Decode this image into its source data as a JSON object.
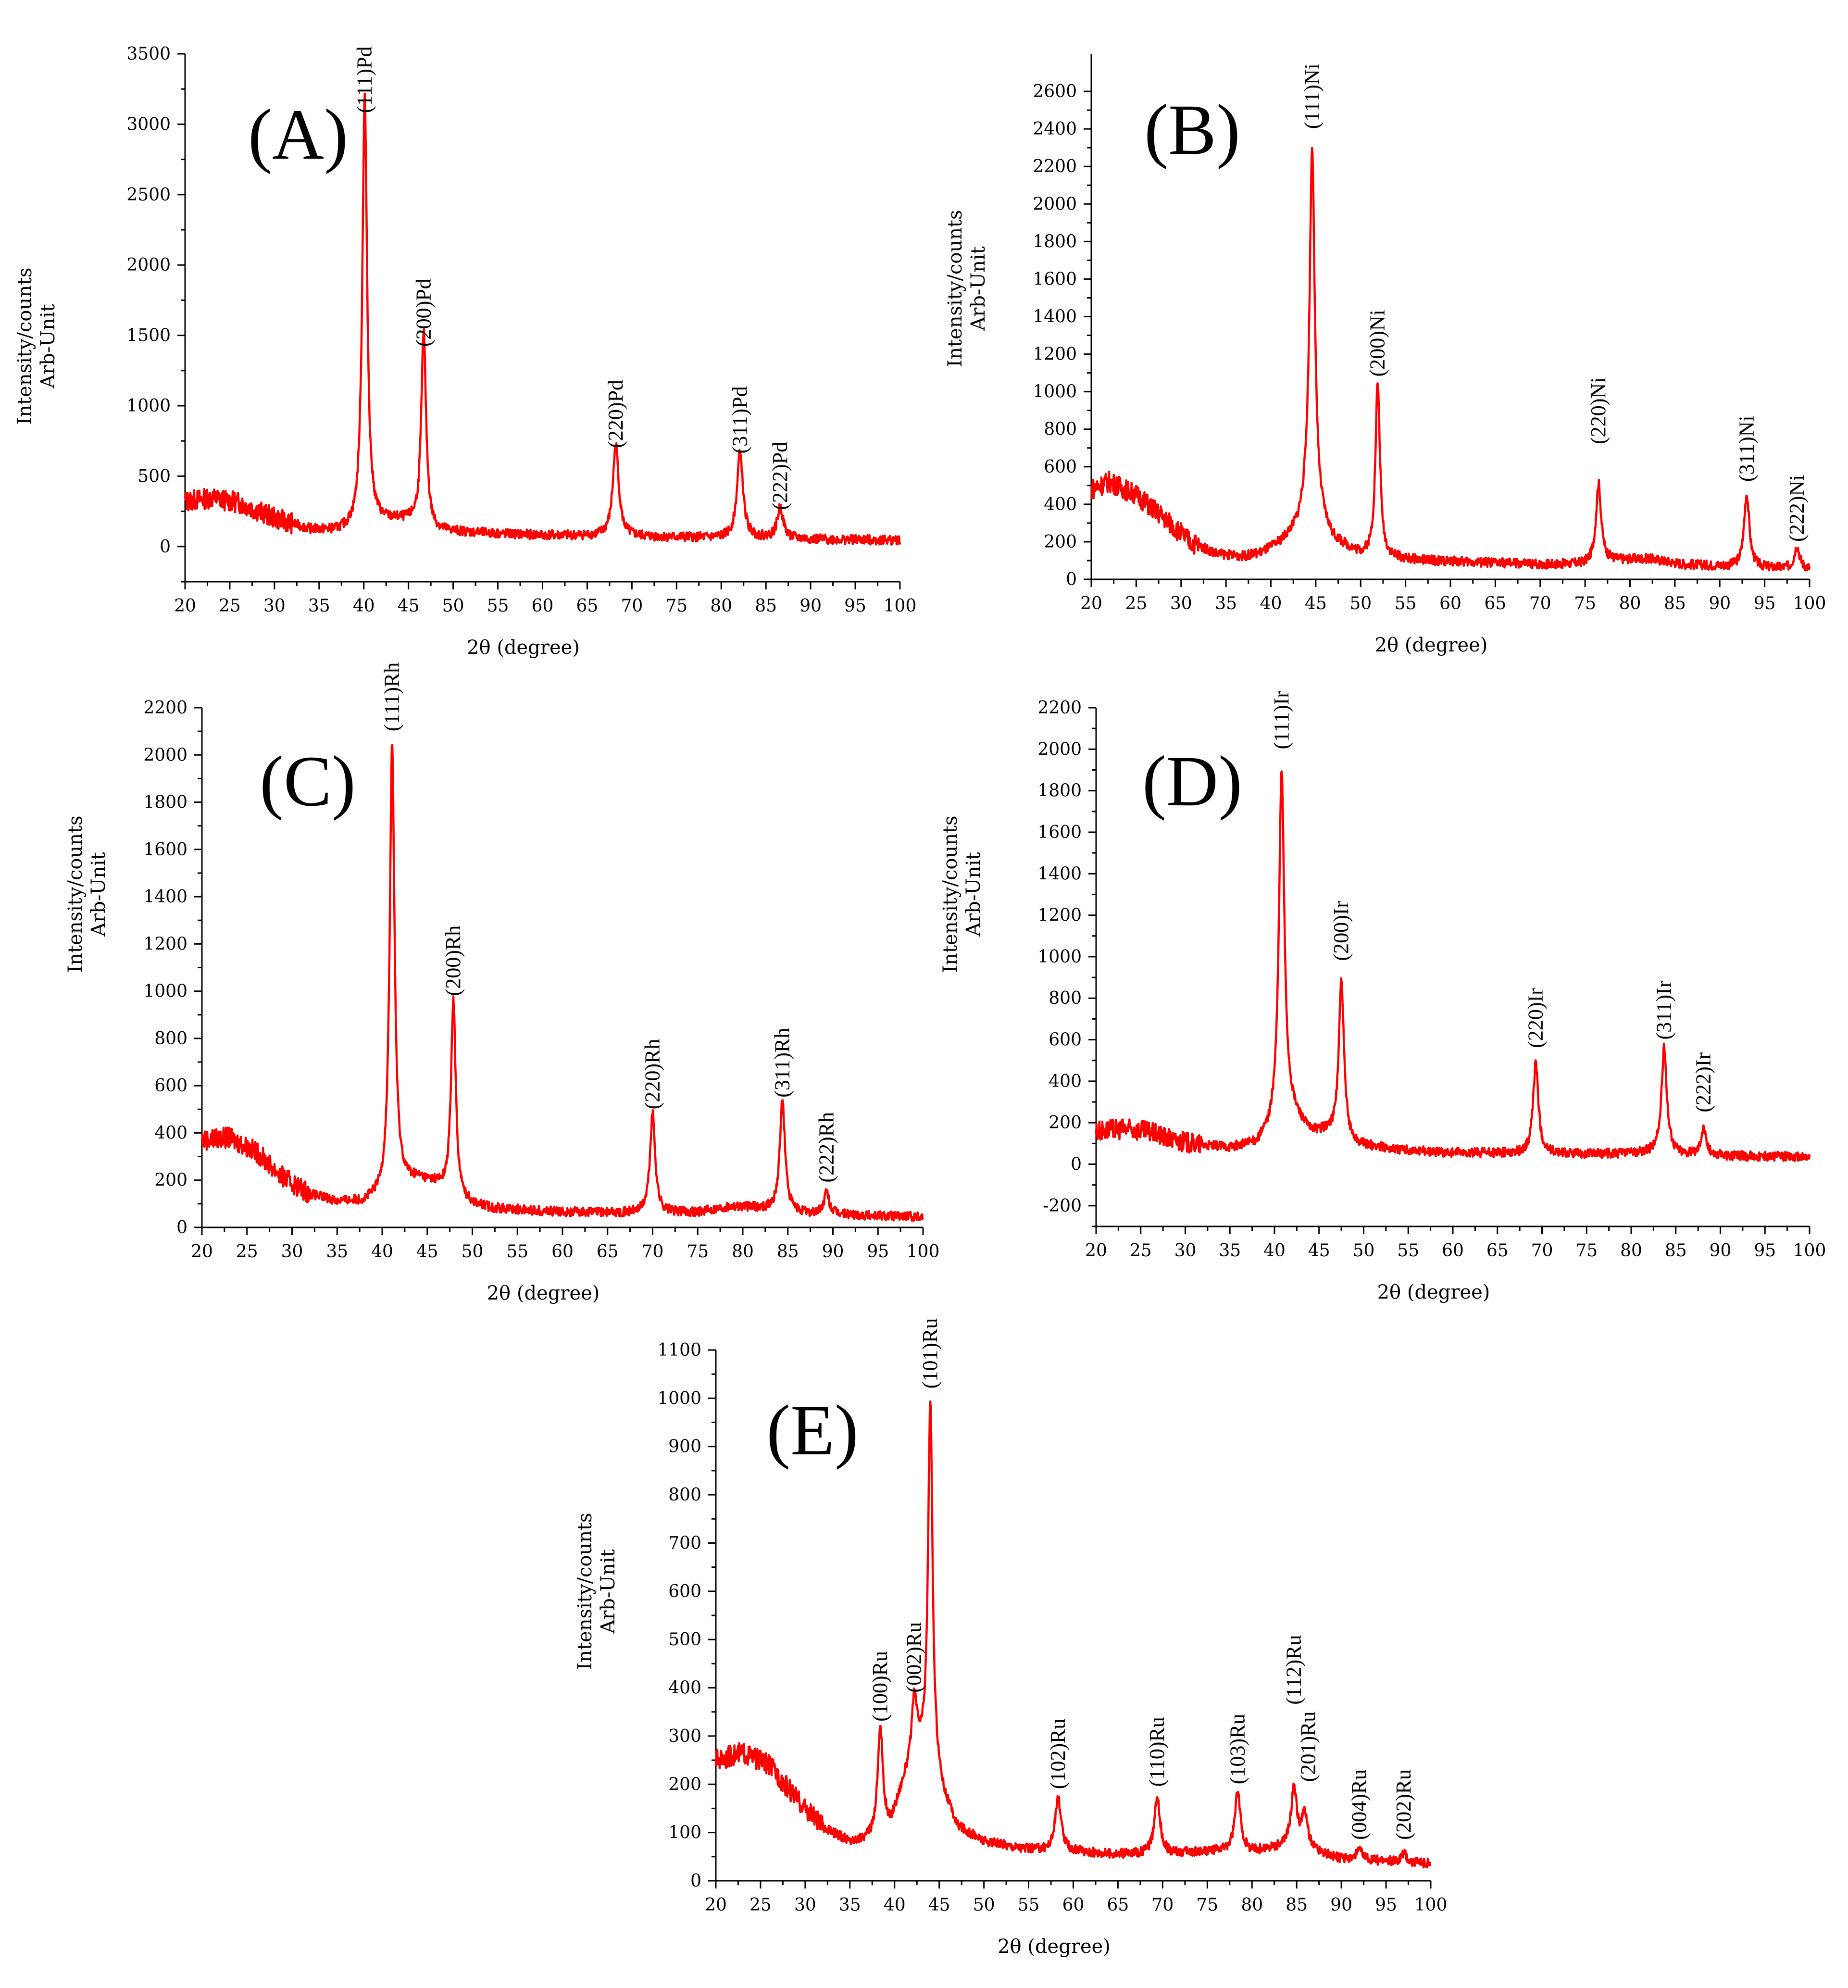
{
  "chart_data": [
    {
      "id": "A",
      "type": "line",
      "panel_label": "(A)",
      "xlabel": "2θ (degree)",
      "ylabel": [
        "Intensity/counts",
        "Arb-Unit"
      ],
      "xlim": [
        20,
        100
      ],
      "ylim": [
        -250,
        3500
      ],
      "xticks": [
        20,
        25,
        30,
        35,
        40,
        45,
        50,
        55,
        60,
        65,
        70,
        75,
        80,
        85,
        90,
        95,
        100
      ],
      "yticks": [
        0,
        500,
        1000,
        1500,
        2000,
        2500,
        3000,
        3500
      ],
      "series": [
        {
          "name": "Pd",
          "color": "#ff0000",
          "baseline": [
            [
              20,
              320
            ],
            [
              23,
              345
            ],
            [
              26,
              310
            ],
            [
              30,
              200
            ],
            [
              34,
              120
            ],
            [
              37,
              105
            ],
            [
              39,
              120
            ],
            [
              40.5,
              160
            ],
            [
              42,
              170
            ],
            [
              44,
              180
            ],
            [
              45.5,
              170
            ],
            [
              48,
              110
            ],
            [
              55,
              90
            ],
            [
              60,
              80
            ],
            [
              70,
              70
            ],
            [
              80,
              60
            ],
            [
              85,
              60
            ],
            [
              90,
              50
            ],
            [
              100,
              45
            ]
          ],
          "peaks": [
            [
              40.1,
              3050,
              0.32
            ],
            [
              46.7,
              1380,
              0.32
            ],
            [
              68.2,
              650,
              0.4
            ],
            [
              82.1,
              610,
              0.4
            ],
            [
              86.6,
              220,
              0.4
            ]
          ]
        }
      ],
      "annotations": [
        {
          "text": "(111)Pd",
          "x": 40.1,
          "y": 3080
        },
        {
          "text": "(200)Pd",
          "x": 46.7,
          "y": 1420
        },
        {
          "text": "(220)Pd",
          "x": 68.2,
          "y": 700
        },
        {
          "text": "(311)Pd",
          "x": 82.1,
          "y": 660
        },
        {
          "text": "(222)Pd",
          "x": 86.6,
          "y": 260
        }
      ]
    },
    {
      "id": "B",
      "type": "line",
      "panel_label": "(B)",
      "xlabel": "2θ (degree)",
      "ylabel": [
        "Intensity/counts",
        "Arb-Unit"
      ],
      "xlim": [
        20,
        100
      ],
      "ylim": [
        0,
        2800
      ],
      "xticks": [
        20,
        25,
        30,
        35,
        40,
        45,
        50,
        55,
        60,
        65,
        70,
        75,
        80,
        85,
        90,
        95,
        100
      ],
      "yticks": [
        0,
        200,
        400,
        600,
        800,
        1000,
        1200,
        1400,
        1600,
        1800,
        2000,
        2200,
        2400,
        2600
      ],
      "series": [
        {
          "name": "Ni",
          "color": "#ff0000",
          "baseline": [
            [
              20,
              480
            ],
            [
              22,
              520
            ],
            [
              25,
              450
            ],
            [
              28,
              330
            ],
            [
              31,
              200
            ],
            [
              34,
              135
            ],
            [
              37,
              120
            ],
            [
              39,
              140
            ],
            [
              41,
              190
            ],
            [
              43,
              270
            ],
            [
              44,
              360
            ],
            [
              45.5,
              300
            ],
            [
              47,
              200
            ],
            [
              50,
              130
            ],
            [
              55,
              105
            ],
            [
              60,
              95
            ],
            [
              70,
              80
            ],
            [
              75,
              80
            ],
            [
              78,
              100
            ],
            [
              82,
              110
            ],
            [
              86,
              80
            ],
            [
              90,
              70
            ],
            [
              95,
              60
            ],
            [
              100,
              55
            ]
          ],
          "peaks": [
            [
              44.6,
              1970,
              0.35
            ],
            [
              51.9,
              930,
              0.3
            ],
            [
              76.5,
              420,
              0.35
            ],
            [
              93.0,
              390,
              0.35
            ],
            [
              98.6,
              120,
              0.35
            ]
          ]
        }
      ],
      "annotations": [
        {
          "text": "(111)Ni",
          "x": 44.6,
          "y": 2400
        },
        {
          "text": "(200)Ni",
          "x": 51.9,
          "y": 1080
        },
        {
          "text": "(220)Ni",
          "x": 76.5,
          "y": 720
        },
        {
          "text": "(311)Ni",
          "x": 93.0,
          "y": 520
        },
        {
          "text": "(222)Ni",
          "x": 98.6,
          "y": 200
        }
      ]
    },
    {
      "id": "C",
      "type": "line",
      "panel_label": "(C)",
      "xlabel": "2θ (degree)",
      "ylabel": [
        "Intensity/counts",
        "Arb-Unit"
      ],
      "xlim": [
        20,
        100
      ],
      "ylim": [
        0,
        2200
      ],
      "xticks": [
        20,
        25,
        30,
        35,
        40,
        45,
        50,
        55,
        60,
        65,
        70,
        75,
        80,
        85,
        90,
        95,
        100
      ],
      "yticks": [
        0,
        200,
        400,
        600,
        800,
        1000,
        1200,
        1400,
        1600,
        1800,
        2000,
        2200
      ],
      "series": [
        {
          "name": "Rh",
          "color": "#ff0000",
          "baseline": [
            [
              20,
              370
            ],
            [
              23,
              380
            ],
            [
              26,
              320
            ],
            [
              29,
              210
            ],
            [
              32,
              140
            ],
            [
              35,
              110
            ],
            [
              38,
              105
            ],
            [
              40,
              130
            ],
            [
              42,
              180
            ],
            [
              44,
              200
            ],
            [
              46,
              180
            ],
            [
              48.5,
              110
            ],
            [
              52,
              80
            ],
            [
              60,
              65
            ],
            [
              70,
              60
            ],
            [
              75,
              65
            ],
            [
              79,
              90
            ],
            [
              82,
              80
            ],
            [
              86,
              60
            ],
            [
              90,
              55
            ],
            [
              100,
              45
            ]
          ],
          "peaks": [
            [
              41.1,
              1890,
              0.32
            ],
            [
              47.9,
              830,
              0.32
            ],
            [
              70.0,
              420,
              0.35
            ],
            [
              84.4,
              470,
              0.35
            ],
            [
              89.3,
              90,
              0.35
            ]
          ]
        }
      ],
      "annotations": [
        {
          "text": "(111)Rh",
          "x": 41.1,
          "y": 2100
        },
        {
          "text": "(200)Rh",
          "x": 47.9,
          "y": 980
        },
        {
          "text": "(220)Rh",
          "x": 70.0,
          "y": 500
        },
        {
          "text": "(311)Rh",
          "x": 84.4,
          "y": 550
        },
        {
          "text": "(222)Rh",
          "x": 89.3,
          "y": 190
        }
      ]
    },
    {
      "id": "D",
      "type": "line",
      "panel_label": "(D)",
      "xlabel": "2θ (degree)",
      "ylabel": [
        "Intensity/counts",
        "Arb-Unit"
      ],
      "xlim": [
        20,
        100
      ],
      "ylim": [
        -300,
        2200
      ],
      "xticks": [
        20,
        25,
        30,
        35,
        40,
        45,
        50,
        55,
        60,
        65,
        70,
        75,
        80,
        85,
        90,
        95,
        100
      ],
      "yticks": [
        -200,
        0,
        200,
        400,
        600,
        800,
        1000,
        1200,
        1400,
        1600,
        1800,
        2000,
        2200
      ],
      "series": [
        {
          "name": "Ir",
          "color": "#ff0000",
          "baseline": [
            [
              20,
              160
            ],
            [
              23,
              170
            ],
            [
              26,
              155
            ],
            [
              29,
              110
            ],
            [
              32,
              90
            ],
            [
              35,
              80
            ],
            [
              38,
              95
            ],
            [
              39.5,
              160
            ],
            [
              41,
              300
            ],
            [
              42.5,
              220
            ],
            [
              44,
              150
            ],
            [
              46,
              150
            ],
            [
              49,
              90
            ],
            [
              55,
              65
            ],
            [
              60,
              55
            ],
            [
              70,
              50
            ],
            [
              80,
              50
            ],
            [
              84,
              60
            ],
            [
              86,
              45
            ],
            [
              90,
              40
            ],
            [
              100,
              35
            ]
          ],
          "peaks": [
            [
              40.8,
              1620,
              0.35
            ],
            [
              47.5,
              760,
              0.35
            ],
            [
              69.3,
              440,
              0.35
            ],
            [
              83.7,
              500,
              0.35
            ],
            [
              88.1,
              130,
              0.35
            ]
          ]
        }
      ],
      "annotations": [
        {
          "text": "(111)Ir",
          "x": 40.8,
          "y": 2000
        },
        {
          "text": "(200)Ir",
          "x": 47.5,
          "y": 980
        },
        {
          "text": "(220)Ir",
          "x": 69.3,
          "y": 560
        },
        {
          "text": "(311)Ir",
          "x": 83.7,
          "y": 600
        },
        {
          "text": "(222)Ir",
          "x": 88.1,
          "y": 250
        }
      ]
    },
    {
      "id": "E",
      "type": "line",
      "panel_label": "(E)",
      "xlabel": "2θ (degree)",
      "ylabel": [
        "Intensity/counts",
        "Arb-Unit"
      ],
      "xlim": [
        20,
        100
      ],
      "ylim": [
        0,
        1100
      ],
      "xticks": [
        20,
        25,
        30,
        35,
        40,
        45,
        50,
        55,
        60,
        65,
        70,
        75,
        80,
        85,
        90,
        95,
        100
      ],
      "yticks": [
        0,
        100,
        200,
        300,
        400,
        500,
        600,
        700,
        800,
        900,
        1000,
        1100
      ],
      "series": [
        {
          "name": "Ru",
          "color": "#ff0000",
          "baseline": [
            [
              20,
              250
            ],
            [
              23,
              265
            ],
            [
              26,
              240
            ],
            [
              29,
              170
            ],
            [
              32,
              110
            ],
            [
              35,
              80
            ],
            [
              37,
              85
            ],
            [
              39.5,
              110
            ],
            [
              41,
              200
            ],
            [
              42.5,
              260
            ],
            [
              44,
              250
            ],
            [
              45.5,
              170
            ],
            [
              47,
              110
            ],
            [
              50,
              80
            ],
            [
              55,
              65
            ],
            [
              60,
              60
            ],
            [
              65,
              55
            ],
            [
              70,
              55
            ],
            [
              75,
              60
            ],
            [
              80,
              60
            ],
            [
              84,
              70
            ],
            [
              87,
              60
            ],
            [
              90,
              45
            ],
            [
              95,
              40
            ],
            [
              100,
              35
            ]
          ],
          "peaks": [
            [
              38.4,
              220,
              0.35
            ],
            [
              42.2,
              120,
              0.35
            ],
            [
              44.0,
              740,
              0.3
            ],
            [
              58.3,
              110,
              0.4
            ],
            [
              69.4,
              115,
              0.4
            ],
            [
              78.4,
              120,
              0.4
            ],
            [
              84.7,
              120,
              0.4
            ],
            [
              85.9,
              70,
              0.4
            ],
            [
              92.0,
              20,
              0.4
            ],
            [
              97.0,
              20,
              0.4
            ]
          ]
        }
      ],
      "annotations": [
        {
          "text": "(100)Ru",
          "x": 38.4,
          "y": 330
        },
        {
          "text": "(002)Ru",
          "x": 42.2,
          "y": 390
        },
        {
          "text": "(101)Ru",
          "x": 44.0,
          "y": 1020
        },
        {
          "text": "(102)Ru",
          "x": 58.3,
          "y": 190
        },
        {
          "text": "(110)Ru",
          "x": 69.4,
          "y": 195
        },
        {
          "text": "(103)Ru",
          "x": 78.4,
          "y": 200
        },
        {
          "text": "(112)Ru",
          "x": 84.7,
          "y": 365
        },
        {
          "text": "(201)Ru",
          "x": 86.3,
          "y": 205
        },
        {
          "text": "(004)Ru",
          "x": 92.0,
          "y": 85
        },
        {
          "text": "(202)Ru",
          "x": 97.0,
          "y": 85
        }
      ]
    }
  ]
}
